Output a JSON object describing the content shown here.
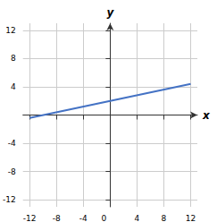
{
  "chart_data": {
    "type": "line",
    "x": [
      -12,
      12
    ],
    "values": [
      -0.4,
      4.4
    ],
    "color": "#4472c4",
    "x_label": "x",
    "y_label": "y",
    "xlim": [
      -13,
      13
    ],
    "ylim": [
      -13,
      13
    ],
    "xticks": [
      -12,
      -8,
      -4,
      0,
      4,
      8,
      12
    ],
    "yticks": [
      -12,
      -8,
      -4,
      4,
      8,
      12
    ],
    "grid": true
  }
}
